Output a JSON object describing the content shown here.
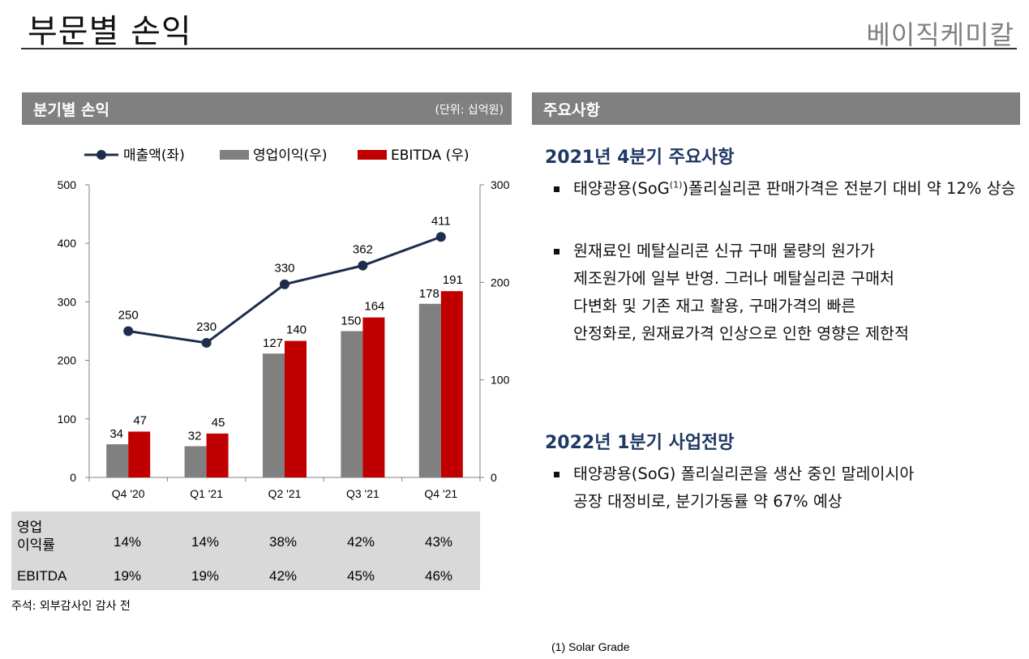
{
  "header": {
    "title": "부문별 손익",
    "company": "베이직케미칼"
  },
  "left_panel": {
    "title": "분기별 손익",
    "unit": "(단위: 십억원)"
  },
  "right_panel": {
    "title": "주요사항"
  },
  "chart_data": {
    "type": "bar+line",
    "categories": [
      "Q4 '20",
      "Q1 '21",
      "Q2 '21",
      "Q3 '21",
      "Q4 '21"
    ],
    "series": [
      {
        "name": "매출액(좌)",
        "type": "line",
        "axis": "left",
        "values": [
          250,
          230,
          330,
          362,
          411
        ],
        "color": "#1f2d4d"
      },
      {
        "name": "영업이익(우)",
        "type": "bar",
        "axis": "right",
        "values": [
          34,
          32,
          127,
          150,
          178
        ],
        "color": "#808080"
      },
      {
        "name": "EBITDA (우)",
        "type": "bar",
        "axis": "right",
        "values": [
          47,
          45,
          140,
          164,
          191
        ],
        "color": "#c00000"
      }
    ],
    "y_left": {
      "min": 0,
      "max": 500,
      "ticks": [
        0,
        100,
        200,
        300,
        400,
        500
      ]
    },
    "y_right": {
      "min": 0,
      "max": 300,
      "ticks": [
        0,
        100,
        200,
        300
      ]
    },
    "legend_position": "top",
    "grid": false
  },
  "ratio_table": {
    "rows": [
      {
        "label_lines": [
          "영업",
          "이익률"
        ],
        "values": [
          "14%",
          "14%",
          "38%",
          "42%",
          "43%"
        ]
      },
      {
        "label_lines": [
          "EBITDA"
        ],
        "values": [
          "19%",
          "19%",
          "42%",
          "45%",
          "46%"
        ]
      }
    ]
  },
  "footnote_left": "주석: 외부감사인 감사 전",
  "highlights": {
    "q4_heading": "2021년 4분기 주요사항",
    "b1_pre": "태양광용(SoG",
    "b1_sup": "(1)",
    "b1_post": ")폴리실리콘 판매가격은 전분기 대비 약 12% 상승",
    "b2_line1": "원재료인 메탈실리콘 신규 구매 물량의 원가가",
    "b2_line2": "제조원가에 일부 반영. 그러나 메탈실리콘 구매처",
    "b2_line3": "다변화 및 기존 재고 활용, 구매가격의 빠른",
    "b2_line4": "안정화로, 원재료가격 인상으로  인한 영향은 제한적",
    "q1_heading": "2022년 1분기 사업전망",
    "b3_line1": "태양광용(SoG) 폴리실리콘을 생산 중인 말레이시아",
    "b3_line2": "공장 대정비로, 분기가동률 약 67% 예상"
  },
  "footnote_right": "(1)  Solar Grade"
}
